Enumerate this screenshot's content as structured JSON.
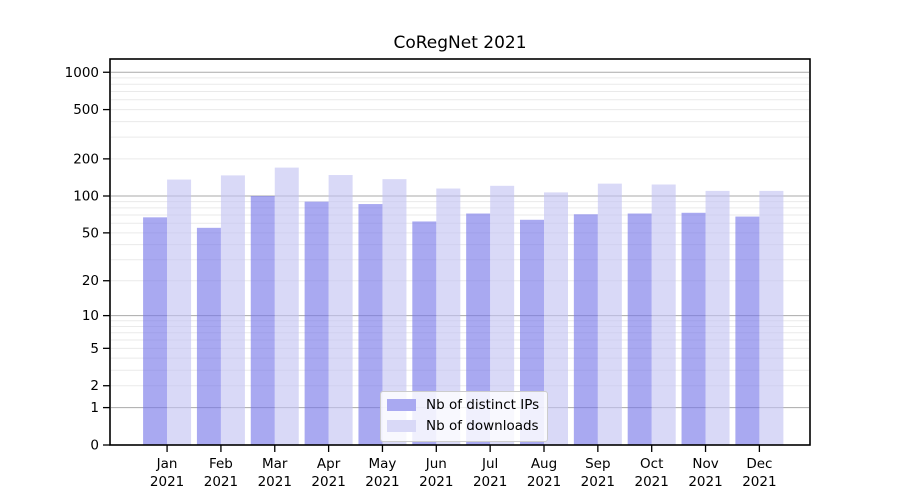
{
  "chart_data": {
    "type": "bar",
    "title": "CoRegNet 2021",
    "categories": [
      "Jan",
      "Feb",
      "Mar",
      "Apr",
      "May",
      "Jun",
      "Jul",
      "Aug",
      "Sep",
      "Oct",
      "Nov",
      "Dec"
    ],
    "category_year": "2021",
    "series": [
      {
        "name": "Nb of distinct IPs",
        "color_solid": "#a9a9f1",
        "color_rgba": "rgba(116,116,232,0.62)",
        "values": [
          67,
          55,
          100,
          90,
          86,
          62,
          72,
          64,
          71,
          72,
          73,
          68
        ]
      },
      {
        "name": "Nb of downloads",
        "color_solid": "#d9d9f7",
        "color_rgba": "rgba(194,194,242,0.62)",
        "values": [
          136,
          147,
          170,
          148,
          137,
          115,
          121,
          107,
          126,
          124,
          110,
          110
        ]
      }
    ],
    "yscale": "log1p",
    "y_ticks": [
      0,
      1,
      2,
      5,
      10,
      20,
      50,
      100,
      200,
      500,
      1000
    ],
    "ylim": [
      0,
      1300
    ],
    "xlabel": "",
    "ylabel": "",
    "grid": "on",
    "legend_position": "lower center",
    "colors": {
      "grid_major": "#aaaaaa",
      "grid_minor": "#eaeaea",
      "axis": "#000000",
      "text": "#000000",
      "background": "#ffffff"
    }
  }
}
